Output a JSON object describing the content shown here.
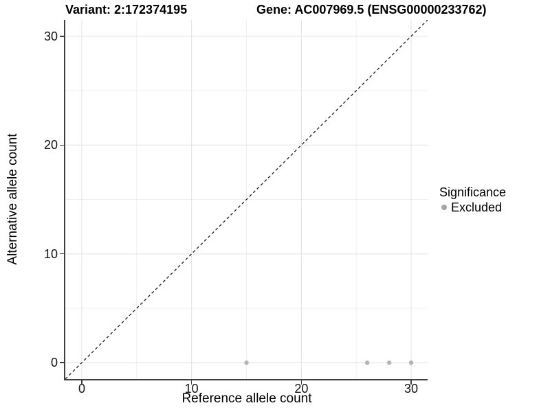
{
  "figure": {
    "title_variant": "Variant: 2:172374195",
    "title_gene": "Gene: AC007969.5 (ENSG00000233762)"
  },
  "chart_data": {
    "type": "scatter",
    "titles": [
      "Variant: 2:172374195",
      "Gene: AC007969.5 (ENSG00000233762)"
    ],
    "xlabel": "Reference allele count",
    "ylabel": "Alternative allele count",
    "xlim": [
      -1.5,
      31.5
    ],
    "ylim": [
      -1.5,
      31.5
    ],
    "x_major_ticks": [
      0,
      10,
      20,
      30
    ],
    "y_major_ticks": [
      0,
      10,
      20,
      30
    ],
    "x_minor_ticks": [
      5,
      15,
      25
    ],
    "y_minor_ticks": [
      5,
      15,
      25
    ],
    "grid": "major-and-minor",
    "identity_line": {
      "style": "dashed",
      "from": [
        -1.5,
        -1.5
      ],
      "to": [
        31.5,
        31.5
      ]
    },
    "series": [
      {
        "name": "Excluded",
        "color": "#b4b4b4",
        "points": [
          {
            "x": 15,
            "y": 0
          },
          {
            "x": 26,
            "y": 0
          },
          {
            "x": 28,
            "y": 0
          },
          {
            "x": 30,
            "y": 0
          }
        ]
      }
    ],
    "legend": {
      "title": "Significance",
      "position": "right",
      "entries": [
        {
          "label": "Excluded",
          "color": "#a4a4a4"
        }
      ]
    }
  },
  "colors": {
    "background": "#ffffff",
    "axis_line": "#3f3f3f",
    "grid_major": "#e4e4e4",
    "grid_minor": "#efefef",
    "tick_text": "#141414",
    "identity_line": "#1c1c1c"
  }
}
